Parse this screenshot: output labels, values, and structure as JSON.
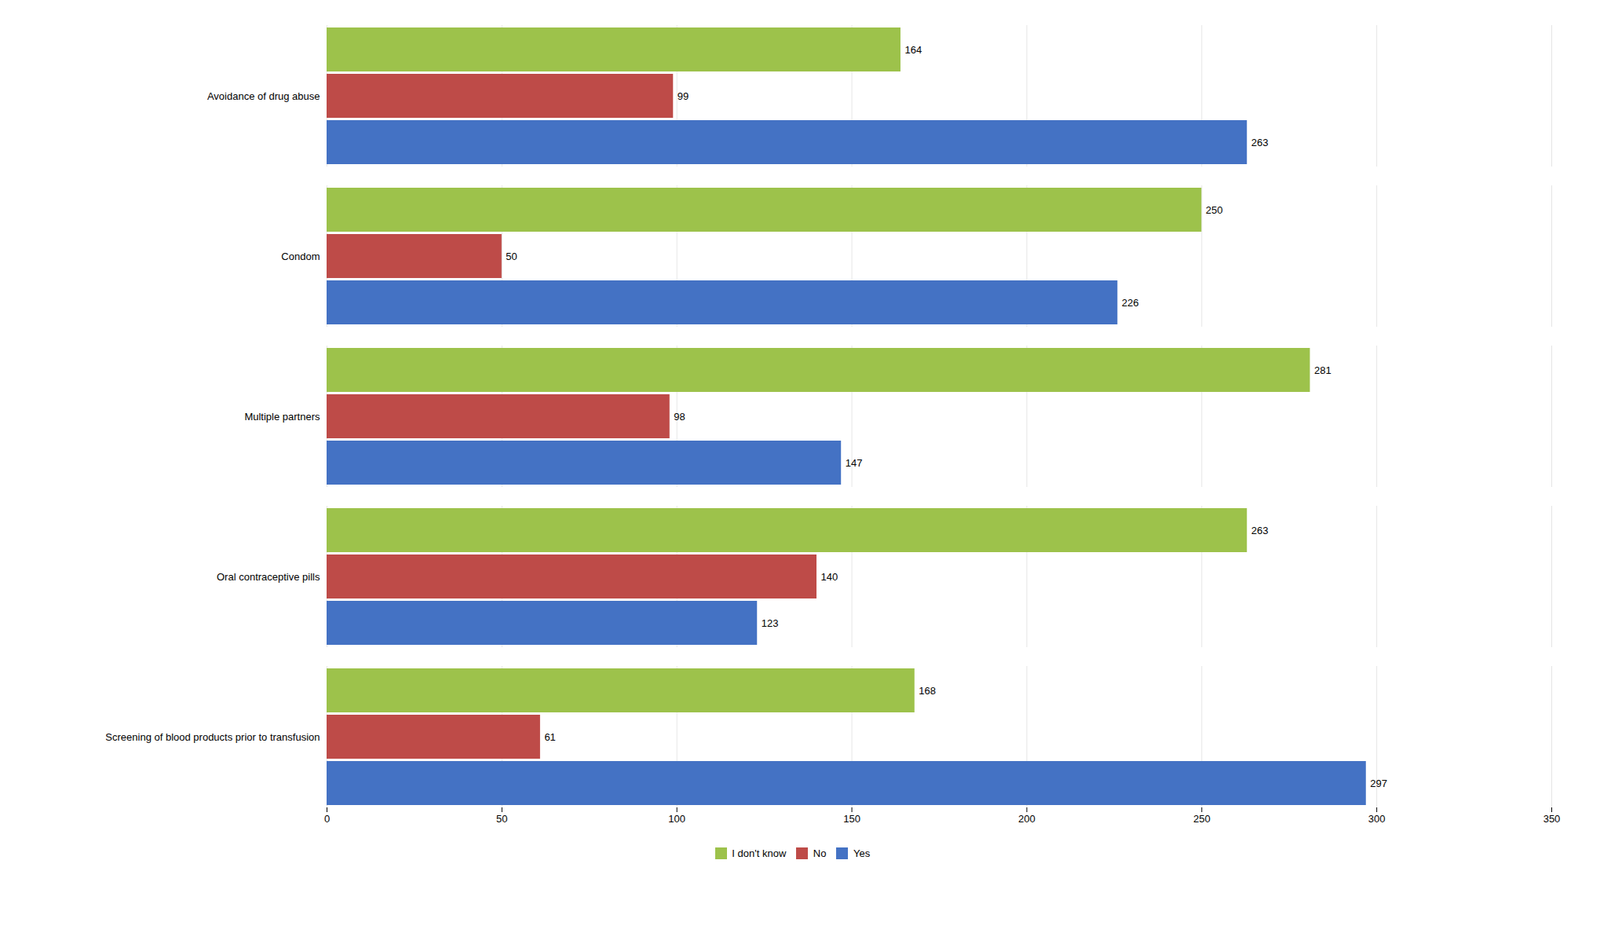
{
  "chart_data": {
    "type": "bar",
    "orientation": "horizontal",
    "categories": [
      "Screening of blood products prior to transfusion",
      "Oral contraceptive pills",
      "Multiple partners",
      "Condom",
      "Avoidance of drug abuse"
    ],
    "series": [
      {
        "name": "I don't know",
        "color": "#9DC24B",
        "values": [
          168,
          263,
          281,
          250,
          164
        ]
      },
      {
        "name": "No",
        "color": "#BE4B48",
        "values": [
          61,
          140,
          98,
          50,
          99
        ]
      },
      {
        "name": "Yes",
        "color": "#4472C4",
        "values": [
          297,
          123,
          147,
          226,
          263
        ]
      }
    ],
    "xlim": [
      0,
      350
    ],
    "xticks": [
      0,
      50,
      100,
      150,
      200,
      250,
      300,
      350
    ],
    "grid": true,
    "data_labels": true,
    "legend": "bottom"
  }
}
